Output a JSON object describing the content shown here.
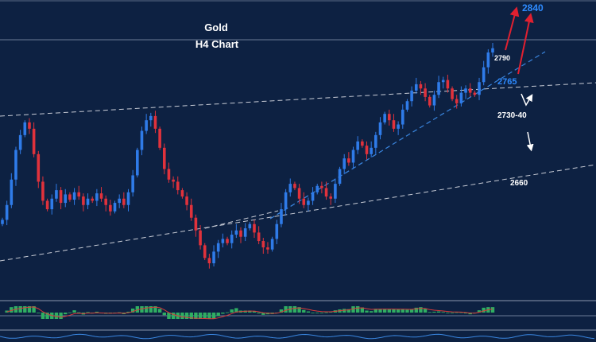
{
  "chart_data": {
    "type": "candlestick",
    "title": "Gold",
    "subtitle": "H4  Chart",
    "price_range": [
      2600,
      2850
    ],
    "colors": {
      "background": "#0d2142",
      "bull": "#2f7be8",
      "bear": "#e0323c",
      "trendline": "#c8ccd6",
      "support_line": "#3a86e0",
      "arrow_red": "#e02030",
      "arrow_white": "#ffffff",
      "label_blue": "#2e8bff",
      "label_white": "#ffffff",
      "histogram": "#2fae62",
      "signal": "#d83a3a"
    },
    "annotations": [
      {
        "text": "2840",
        "price": 2840,
        "color": "blue",
        "size": "large"
      },
      {
        "text": "2790",
        "price": 2790,
        "color": "white",
        "size": "small"
      },
      {
        "text": "2765",
        "price": 2765,
        "color": "blue",
        "size": "medium"
      },
      {
        "text": "2730-40",
        "price": 2735,
        "color": "white",
        "size": "medium"
      },
      {
        "text": "2660",
        "price": 2660,
        "color": "white",
        "size": "medium"
      }
    ],
    "closes": [
      2650,
      2664,
      2688,
      2716,
      2730,
      2742,
      2736,
      2712,
      2686,
      2668,
      2660,
      2670,
      2678,
      2666,
      2674,
      2669,
      2676,
      2672,
      2664,
      2670,
      2668,
      2675,
      2670,
      2664,
      2658,
      2666,
      2670,
      2664,
      2676,
      2692,
      2716,
      2734,
      2744,
      2748,
      2736,
      2718,
      2698,
      2688,
      2686,
      2678,
      2672,
      2664,
      2652,
      2640,
      2626,
      2614,
      2609,
      2620,
      2628,
      2632,
      2628,
      2636,
      2640,
      2634,
      2642,
      2646,
      2638,
      2630,
      2624,
      2622,
      2632,
      2646,
      2660,
      2676,
      2684,
      2680,
      2670,
      2664,
      2668,
      2676,
      2682,
      2680,
      2672,
      2670,
      2684,
      2698,
      2708,
      2704,
      2716,
      2724,
      2720,
      2712,
      2718,
      2730,
      2742,
      2750,
      2744,
      2736,
      2740,
      2754,
      2762,
      2772,
      2778,
      2774,
      2766,
      2758,
      2768,
      2780,
      2782,
      2774,
      2764,
      2760,
      2770,
      2774,
      2770,
      2768,
      2780,
      2794,
      2808,
      2812
    ]
  }
}
